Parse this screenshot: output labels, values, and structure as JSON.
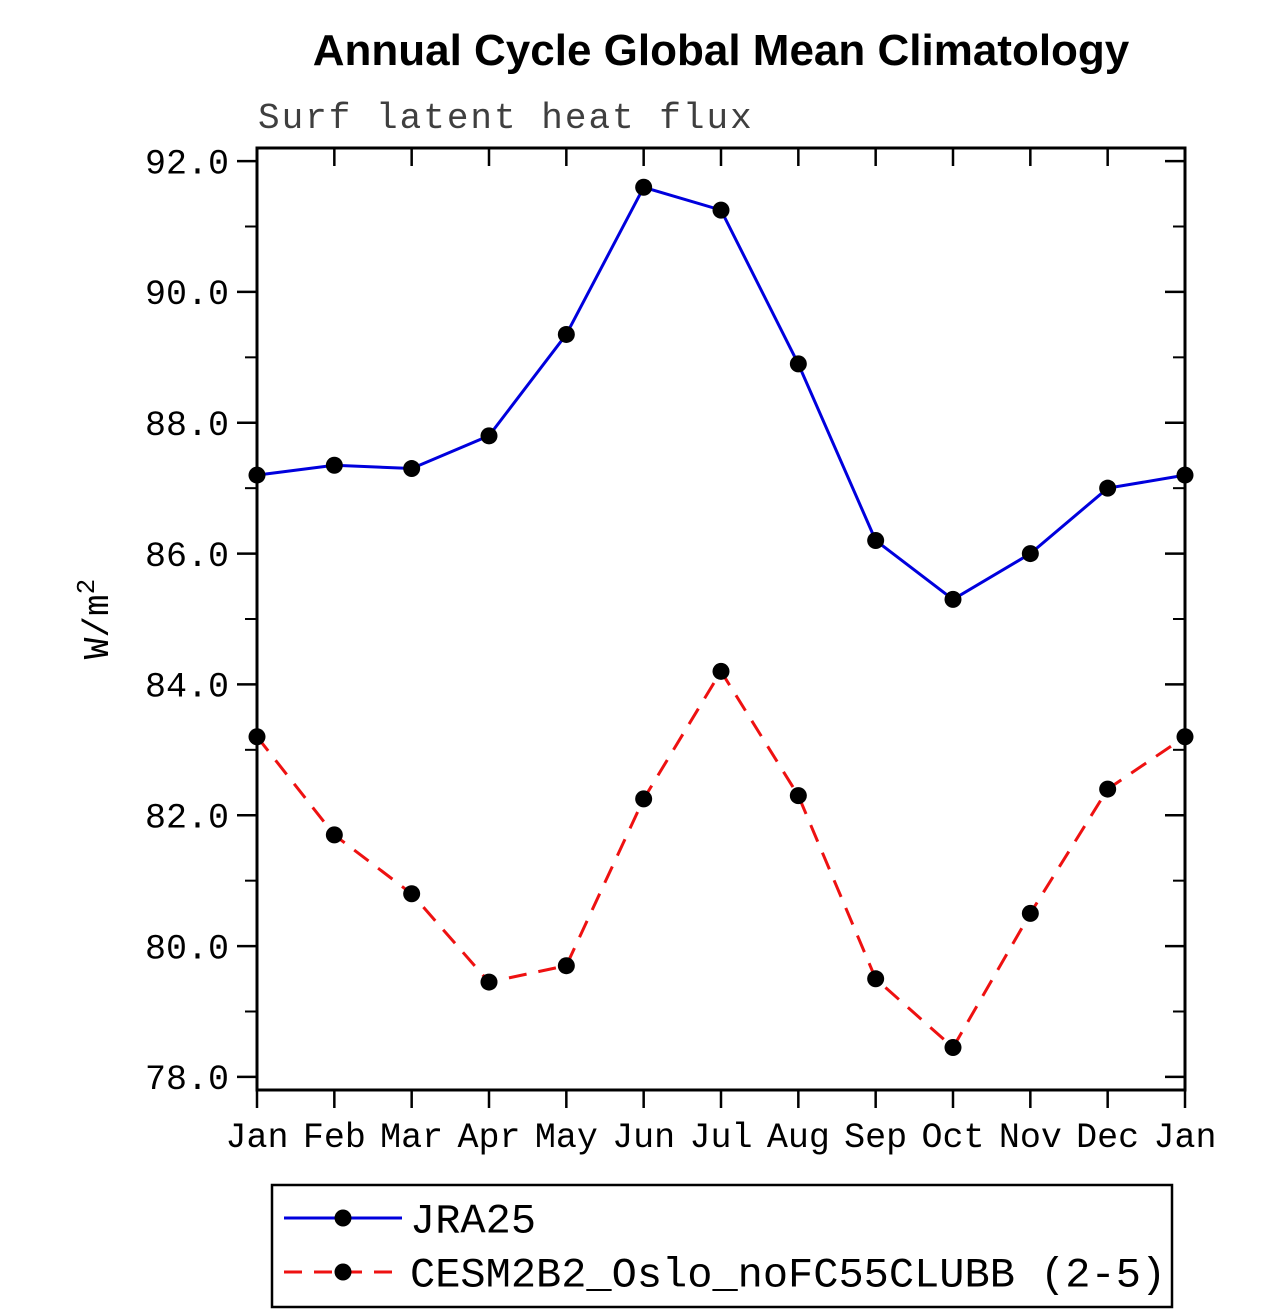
{
  "chart_data": {
    "type": "line",
    "title": "Annual Cycle Global Mean Climatology",
    "subtitle": "Surf latent heat flux",
    "xlabel": "",
    "ylabel": "W/m²",
    "categories": [
      "Jan",
      "Feb",
      "Mar",
      "Apr",
      "May",
      "Jun",
      "Jul",
      "Aug",
      "Sep",
      "Oct",
      "Nov",
      "Dec",
      "Jan"
    ],
    "ylim": [
      77.8,
      92.2
    ],
    "yticks": {
      "values": [
        78,
        80,
        82,
        84,
        86,
        88,
        90,
        92
      ],
      "labels": [
        "78.0",
        "80.0",
        "82.0",
        "84.0",
        "86.0",
        "88.0",
        "90.0",
        "92.0"
      ],
      "minor": [
        79,
        81,
        83,
        85,
        87,
        89,
        91
      ]
    },
    "grid": false,
    "legend_position": "bottom",
    "axis_color": "#000000",
    "marker_color": "#000000",
    "series": [
      {
        "name": "JRA25",
        "color": "#0000dd",
        "style": "solid",
        "values": [
          87.2,
          87.35,
          87.3,
          87.8,
          89.35,
          91.6,
          91.25,
          88.9,
          86.2,
          85.3,
          86.0,
          87.0,
          87.2
        ]
      },
      {
        "name": "CESM2B2_Oslo_noFC55CLUBB (2-5)",
        "color": "#ee1111",
        "style": "dashed",
        "values": [
          83.2,
          81.7,
          80.8,
          79.45,
          79.7,
          82.25,
          84.2,
          82.3,
          79.5,
          78.45,
          80.5,
          82.4,
          83.2
        ]
      }
    ]
  }
}
